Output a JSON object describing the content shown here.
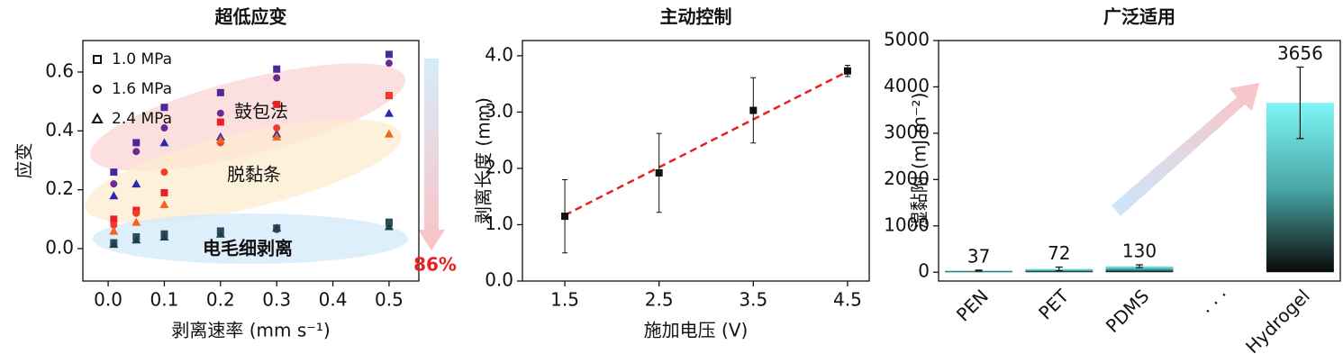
{
  "chart_data": [
    {
      "type": "scatter",
      "title": "超低应变",
      "x_label": "剥离速率 (mm s⁻¹)",
      "y_label": "应变",
      "xlim": [
        -0.045,
        0.553
      ],
      "ylim": [
        -0.11,
        0.707
      ],
      "xticks": [
        {
          "value": 0,
          "label": "0.0"
        },
        0.1,
        0.2,
        0.3,
        0.4,
        0.5
      ],
      "yticks": [
        {
          "value": 0,
          "label": "0.0"
        },
        0.2,
        0.4,
        0.6
      ],
      "x": [
        0.01,
        0.05,
        0.1,
        0.2,
        0.3,
        0.5
      ],
      "legend": [
        {
          "label": "1.0 MPa",
          "marker": "square"
        },
        {
          "label": "1.6 MPa",
          "marker": "circle"
        },
        {
          "label": "2.4 MPa",
          "marker": "triangle"
        }
      ],
      "groups": [
        {
          "label": "鼓包法",
          "series": [
            {
              "marker": "square",
              "color": "#4a2a9a",
              "values": [
                0.26,
                0.36,
                0.48,
                0.53,
                0.61,
                0.66
              ]
            },
            {
              "marker": "circle",
              "color": "#6a2a92",
              "values": [
                0.22,
                0.33,
                0.41,
                0.46,
                0.58,
                0.63
              ]
            },
            {
              "marker": "triangle",
              "color": "#2a2ab0",
              "values": [
                0.18,
                0.22,
                0.36,
                0.38,
                0.39,
                0.46
              ]
            }
          ]
        },
        {
          "label": "脱黏条",
          "series": [
            {
              "marker": "square",
              "color": "#e8202a",
              "values": [
                0.1,
                0.13,
                0.19,
                0.43,
                0.49,
                0.52
              ]
            },
            {
              "marker": "circle",
              "color": "#f03c28",
              "values": [
                0.08,
                0.12,
                0.26,
                0.36,
                0.41,
                0.52
              ]
            },
            {
              "marker": "triangle",
              "color": "#f5641e",
              "values": [
                0.06,
                0.09,
                0.15,
                0.37,
                0.38,
                0.39
              ]
            }
          ]
        },
        {
          "label": "电毛细剥离",
          "series": [
            {
              "marker": "square",
              "color": "#2a4a55",
              "values": [
                0.02,
                0.04,
                0.05,
                0.06,
                0.07,
                0.09
              ]
            },
            {
              "marker": "circle",
              "color": "#33525c",
              "values": [
                0.02,
                0.035,
                0.04,
                0.05,
                0.065,
                0.08
              ]
            },
            {
              "marker": "triangle",
              "color": "#1f3f4a",
              "values": [
                0.015,
                0.03,
                0.04,
                0.05,
                0.07,
                0.075
              ]
            }
          ]
        }
      ],
      "annotation": "86%"
    },
    {
      "type": "errorbar",
      "title": "主动控制",
      "x_label": "施加电压 (V)",
      "y_label": "剥离长度 (mm)",
      "xlim": [
        1.05,
        4.73
      ],
      "ylim": [
        0,
        4.27
      ],
      "xticks": [
        1.5,
        2.5,
        3.5,
        4.5
      ],
      "yticks": [
        {
          "value": 0,
          "label": "0.0"
        },
        {
          "value": 1,
          "label": "1.0"
        },
        {
          "value": 2,
          "label": "2.0"
        },
        {
          "value": 3,
          "label": "3.0"
        },
        {
          "value": 4,
          "label": "4.0"
        }
      ],
      "x": [
        1.5,
        2.5,
        3.5,
        4.5
      ],
      "values": [
        1.15,
        1.92,
        3.03,
        3.73
      ],
      "errors": [
        0.65,
        0.7,
        0.58,
        0.1
      ],
      "color": "#111111",
      "fit": {
        "x": [
          1.5,
          4.5
        ],
        "values": [
          1.17,
          3.72
        ],
        "color": "#e8201e"
      }
    },
    {
      "type": "bar",
      "title": "广泛适用",
      "y_label": "湿黏附 (mJ m⁻²)",
      "ylim": [
        -190,
        5000
      ],
      "yticks": [
        0,
        1000,
        2000,
        3000,
        4000,
        5000
      ],
      "categories": [
        "PEN",
        "PET",
        "PDMS",
        "· · ·",
        "Hydrogel"
      ],
      "values": [
        37,
        72,
        130,
        null,
        3656
      ],
      "errors": [
        10,
        40,
        30,
        null,
        770
      ]
    }
  ]
}
